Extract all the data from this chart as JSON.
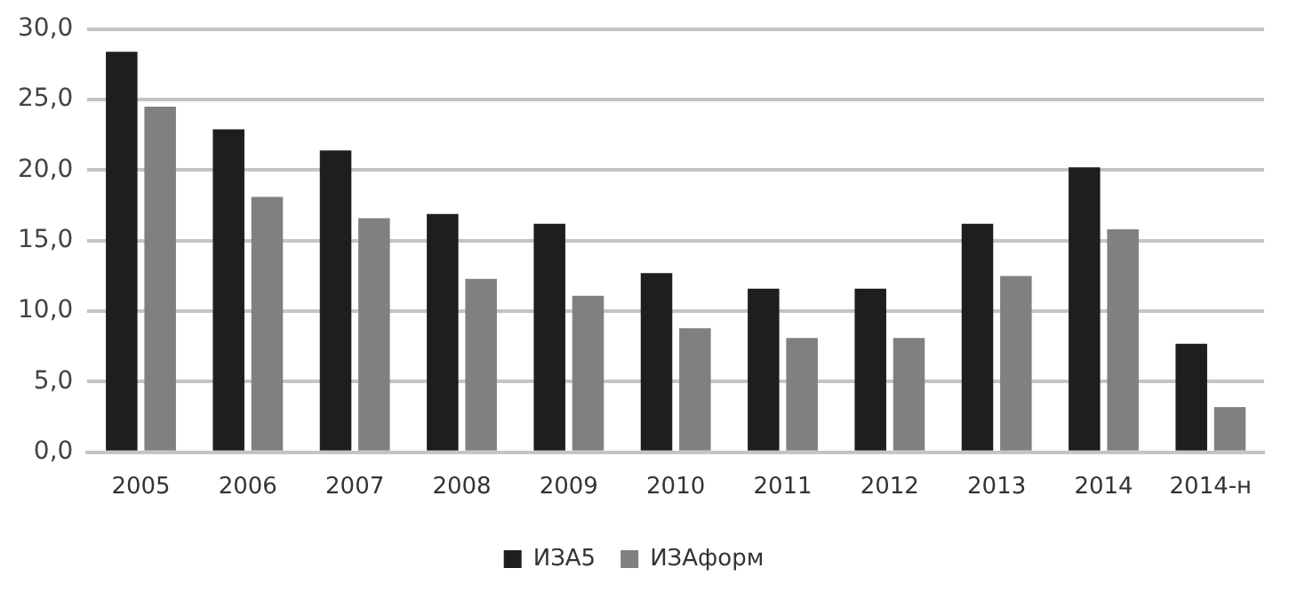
{
  "chart_data": {
    "type": "bar",
    "categories": [
      "2005",
      "2006",
      "2007",
      "2008",
      "2009",
      "2010",
      "2011",
      "2012",
      "2013",
      "2014",
      "2014-н"
    ],
    "series": [
      {
        "name": "ИЗА5",
        "color": "#1e1e1e",
        "values": [
          28.4,
          22.9,
          21.4,
          16.9,
          16.2,
          12.7,
          11.6,
          11.6,
          16.2,
          20.2,
          7.7
        ]
      },
      {
        "name": "ИЗАформ",
        "color": "#808080",
        "values": [
          24.5,
          18.1,
          16.6,
          12.3,
          11.1,
          8.8,
          8.1,
          8.1,
          12.5,
          15.8,
          3.2
        ]
      }
    ],
    "ylim": [
      0,
      30
    ],
    "yticks": [
      {
        "value": 0,
        "label": "0,0"
      },
      {
        "value": 5,
        "label": "5,0"
      },
      {
        "value": 10,
        "label": "10,0"
      },
      {
        "value": 15,
        "label": "15,0"
      },
      {
        "value": 20,
        "label": "20,0"
      },
      {
        "value": 25,
        "label": "25,0"
      },
      {
        "value": 30,
        "label": "30,0"
      }
    ],
    "grid": "y",
    "legend": "bottom"
  }
}
